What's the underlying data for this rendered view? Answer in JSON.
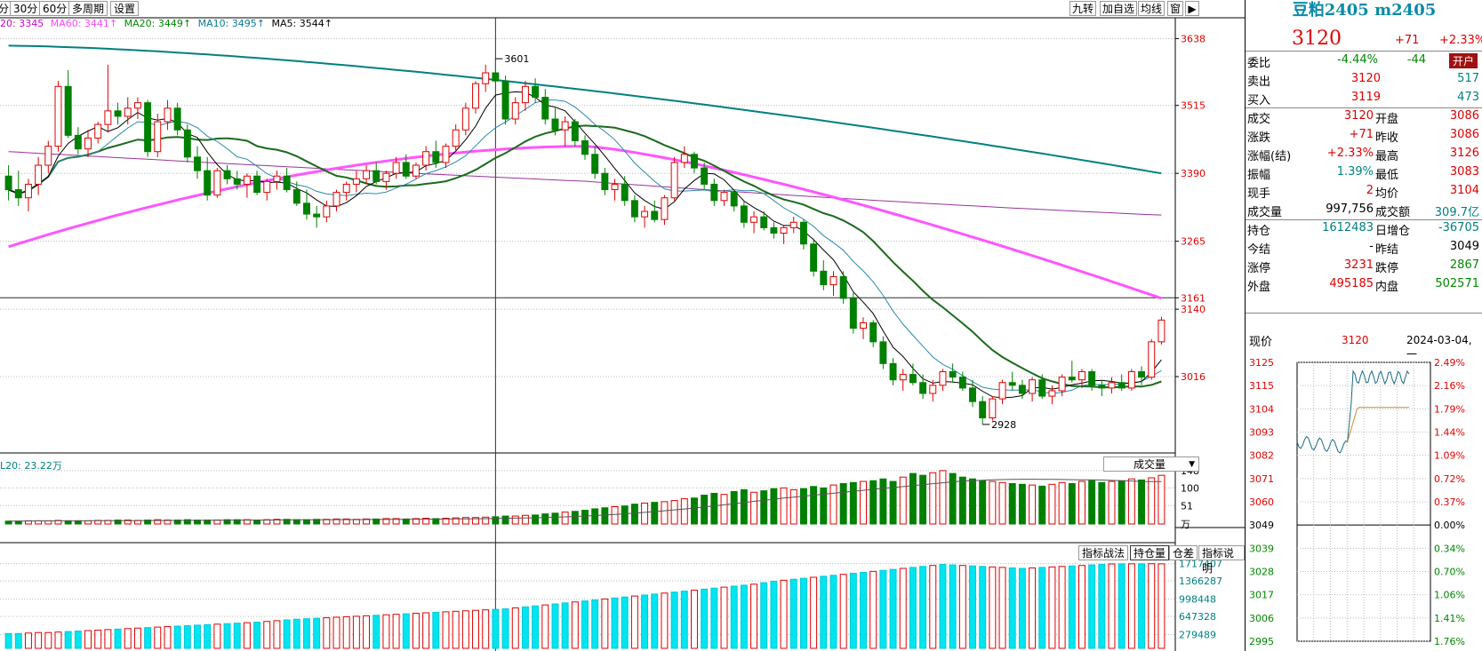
{
  "toolbar": {
    "tabs": [
      "分",
      "30分",
      "60分",
      "多周期",
      "设置"
    ],
    "right_tabs": [
      "九转",
      "加自选",
      "均线",
      "窗"
    ],
    "ma": [
      {
        "label": "20: 3345",
        "color": "#cc00cc"
      },
      {
        "label": "MA60: 3441↑",
        "color": "#ff44ff"
      },
      {
        "label": "MA20: 3449↑",
        "color": "#008800"
      },
      {
        "label": "MA10: 3495↑",
        "color": "#0a7a9a"
      },
      {
        "label": "MA5: 3544↑",
        "color": "#000000"
      }
    ]
  },
  "main_chart": {
    "y_ticks": [
      "3638",
      "3515",
      "3390",
      "3265",
      "3161",
      "3140",
      "3016"
    ],
    "high_label": "3601",
    "low_label": "2928"
  },
  "volume_panel": {
    "label": "L20: 23.22万",
    "selector": "成交量",
    "y_ticks": [
      "148",
      "100",
      "51"
    ],
    "unit": "万"
  },
  "oi_panel": {
    "tabs": [
      "指标战法",
      "持仓量",
      "仓差",
      "指标说明"
    ],
    "y_ticks": [
      "1717407",
      "1366287",
      "998448",
      "647328",
      "279489"
    ]
  },
  "quote": {
    "title": "豆粕2405 m2405",
    "price": "3120",
    "change": "+71",
    "change_pct": "+2.33%",
    "rows": [
      {
        "l": "委比",
        "v1": "-4.44%",
        "v1c": "green",
        "v2": "-44",
        "v2c": "green",
        "badge": "开户"
      },
      {
        "l": "卖出",
        "v1": "3120",
        "v1c": "red",
        "v2": "517",
        "v2c": "teal"
      },
      {
        "l": "买入",
        "v1": "3119",
        "v1c": "red",
        "v2": "473",
        "v2c": "teal"
      },
      {
        "l": "成交",
        "v1": "3120",
        "v1c": "red",
        "l2": "开盘",
        "v2": "3086",
        "v2c": "red"
      },
      {
        "l": "涨跌",
        "v1": "+71",
        "v1c": "red",
        "l2": "昨收",
        "v2": "3086",
        "v2c": "red"
      },
      {
        "l": "涨幅(结)",
        "v1": "+2.33%",
        "v1c": "red",
        "l2": "最高",
        "v2": "3126",
        "v2c": "red"
      },
      {
        "l": "振幅",
        "v1": "1.39%",
        "v1c": "teal",
        "l2": "最低",
        "v2": "3083",
        "v2c": "red"
      },
      {
        "l": "现手",
        "v1": "2",
        "v1c": "red",
        "l2": "均价",
        "v2": "3104",
        "v2c": "red"
      },
      {
        "l": "成交量",
        "v1": "997,756",
        "v1c": "black",
        "l2": "成交额",
        "v2": "309.7亿",
        "v2c": "teal"
      },
      {
        "l": "持仓",
        "v1": "1612483",
        "v1c": "teal",
        "l2": "日增仓",
        "v2": "-36705",
        "v2c": "teal"
      },
      {
        "l": "今结",
        "v1": "-",
        "v1c": "black",
        "l2": "昨结",
        "v2": "3049",
        "v2c": "black"
      },
      {
        "l": "涨停",
        "v1": "3231",
        "v1c": "red",
        "l2": "跌停",
        "v2": "2867",
        "v2c": "green"
      },
      {
        "l": "外盘",
        "v1": "495185",
        "v1c": "red",
        "l2": "内盘",
        "v2": "502571",
        "v2c": "green"
      }
    ],
    "mini_label": "现价",
    "mini_price": "3120",
    "mini_date": "2024-03-04,一",
    "mini_left_ticks": [
      "3125",
      "3115",
      "3104",
      "3093",
      "3082",
      "3071",
      "3060",
      "3049",
      "3039",
      "3028",
      "3017",
      "3006",
      "2995"
    ],
    "mini_right_ticks": [
      "2.49%",
      "2.16%",
      "1.79%",
      "1.44%",
      "1.09%",
      "0.72%",
      "0.37%",
      "0.00%",
      "0.34%",
      "0.70%",
      "1.06%",
      "1.41%",
      "1.76%"
    ]
  },
  "colors": {
    "up": "#e00000",
    "down": "#008000",
    "oi_up": "#00e5f0",
    "ma60": "#ff55ff",
    "ma20": "#1a6a1a",
    "ma_long": "#008080"
  },
  "chart_data": {
    "type": "candlestick",
    "instrument": "m2405",
    "y_range": [
      2900,
      3660
    ],
    "candles": [
      [
        3385,
        3405,
        3340,
        3360
      ],
      [
        3360,
        3395,
        3330,
        3345
      ],
      [
        3345,
        3380,
        3320,
        3370
      ],
      [
        3370,
        3420,
        3350,
        3405
      ],
      [
        3405,
        3450,
        3390,
        3440
      ],
      [
        3440,
        3560,
        3430,
        3550
      ],
      [
        3550,
        3580,
        3455,
        3460
      ],
      [
        3460,
        3475,
        3425,
        3435
      ],
      [
        3435,
        3470,
        3420,
        3455
      ],
      [
        3455,
        3485,
        3445,
        3480
      ],
      [
        3480,
        3590,
        3465,
        3505
      ],
      [
        3505,
        3520,
        3480,
        3495
      ],
      [
        3495,
        3530,
        3480,
        3510
      ],
      [
        3510,
        3530,
        3490,
        3520
      ],
      [
        3520,
        3525,
        3420,
        3430
      ],
      [
        3430,
        3500,
        3420,
        3485
      ],
      [
        3485,
        3525,
        3470,
        3510
      ],
      [
        3510,
        3520,
        3460,
        3470
      ],
      [
        3470,
        3480,
        3410,
        3420
      ],
      [
        3420,
        3440,
        3380,
        3395
      ],
      [
        3395,
        3420,
        3340,
        3350
      ],
      [
        3350,
        3400,
        3345,
        3395
      ],
      [
        3395,
        3405,
        3370,
        3380
      ],
      [
        3380,
        3395,
        3360,
        3370
      ],
      [
        3370,
        3390,
        3345,
        3385
      ],
      [
        3385,
        3395,
        3350,
        3355
      ],
      [
        3355,
        3380,
        3340,
        3375
      ],
      [
        3375,
        3395,
        3360,
        3385
      ],
      [
        3385,
        3400,
        3355,
        3360
      ],
      [
        3360,
        3375,
        3330,
        3335
      ],
      [
        3335,
        3360,
        3305,
        3315
      ],
      [
        3315,
        3330,
        3290,
        3310
      ],
      [
        3310,
        3340,
        3300,
        3330
      ],
      [
        3330,
        3360,
        3320,
        3355
      ],
      [
        3355,
        3375,
        3340,
        3370
      ],
      [
        3370,
        3395,
        3355,
        3380
      ],
      [
        3380,
        3405,
        3370,
        3395
      ],
      [
        3395,
        3410,
        3370,
        3375
      ],
      [
        3375,
        3395,
        3360,
        3390
      ],
      [
        3390,
        3420,
        3380,
        3410
      ],
      [
        3410,
        3425,
        3380,
        3385
      ],
      [
        3385,
        3410,
        3380,
        3405
      ],
      [
        3405,
        3440,
        3395,
        3430
      ],
      [
        3430,
        3450,
        3400,
        3410
      ],
      [
        3410,
        3445,
        3400,
        3440
      ],
      [
        3440,
        3480,
        3430,
        3470
      ],
      [
        3470,
        3520,
        3460,
        3510
      ],
      [
        3510,
        3560,
        3500,
        3555
      ],
      [
        3555,
        3590,
        3540,
        3575
      ],
      [
        3575,
        3601,
        3555,
        3560
      ],
      [
        3560,
        3570,
        3480,
        3490
      ],
      [
        3490,
        3530,
        3480,
        3520
      ],
      [
        3520,
        3560,
        3505,
        3550
      ],
      [
        3550,
        3565,
        3520,
        3530
      ],
      [
        3530,
        3545,
        3480,
        3490
      ],
      [
        3490,
        3510,
        3460,
        3470
      ],
      [
        3470,
        3495,
        3440,
        3485
      ],
      [
        3485,
        3490,
        3440,
        3450
      ],
      [
        3450,
        3460,
        3415,
        3425
      ],
      [
        3425,
        3440,
        3380,
        3390
      ],
      [
        3390,
        3400,
        3350,
        3360
      ],
      [
        3360,
        3380,
        3340,
        3370
      ],
      [
        3370,
        3385,
        3330,
        3340
      ],
      [
        3340,
        3350,
        3300,
        3310
      ],
      [
        3310,
        3330,
        3290,
        3320
      ],
      [
        3320,
        3340,
        3300,
        3305
      ],
      [
        3305,
        3350,
        3295,
        3345
      ],
      [
        3345,
        3420,
        3340,
        3410
      ],
      [
        3410,
        3440,
        3400,
        3425
      ],
      [
        3425,
        3430,
        3390,
        3400
      ],
      [
        3400,
        3410,
        3360,
        3370
      ],
      [
        3370,
        3380,
        3330,
        3340
      ],
      [
        3340,
        3360,
        3330,
        3355
      ],
      [
        3355,
        3360,
        3320,
        3330
      ],
      [
        3330,
        3340,
        3290,
        3300
      ],
      [
        3300,
        3320,
        3280,
        3310
      ],
      [
        3310,
        3320,
        3285,
        3290
      ],
      [
        3290,
        3300,
        3270,
        3280
      ],
      [
        3280,
        3295,
        3260,
        3290
      ],
      [
        3290,
        3310,
        3280,
        3300
      ],
      [
        3300,
        3305,
        3250,
        3260
      ],
      [
        3260,
        3270,
        3200,
        3210
      ],
      [
        3210,
        3230,
        3175,
        3185
      ],
      [
        3185,
        3210,
        3165,
        3200
      ],
      [
        3200,
        3210,
        3150,
        3160
      ],
      [
        3160,
        3170,
        3095,
        3105
      ],
      [
        3105,
        3125,
        3085,
        3115
      ],
      [
        3115,
        3120,
        3070,
        3080
      ],
      [
        3080,
        3090,
        3030,
        3040
      ],
      [
        3040,
        3050,
        3000,
        3010
      ],
      [
        3010,
        3030,
        2990,
        3020
      ],
      [
        3020,
        3040,
        3000,
        3005
      ],
      [
        3005,
        3020,
        2975,
        2985
      ],
      [
        2985,
        3010,
        2970,
        3000
      ],
      [
        3000,
        3030,
        2990,
        3025
      ],
      [
        3025,
        3040,
        3005,
        3015
      ],
      [
        3015,
        3025,
        2990,
        2995
      ],
      [
        2995,
        3010,
        2960,
        2970
      ],
      [
        2970,
        2980,
        2928,
        2940
      ],
      [
        2940,
        2980,
        2935,
        2975
      ],
      [
        2975,
        3010,
        2965,
        3005
      ],
      [
        3005,
        3025,
        2990,
        3000
      ],
      [
        3000,
        3010,
        2975,
        2985
      ],
      [
        2985,
        3015,
        2970,
        3010
      ],
      [
        3010,
        3020,
        2975,
        2980
      ],
      [
        2980,
        3000,
        2965,
        2990
      ],
      [
        2990,
        3020,
        2980,
        3015
      ],
      [
        3015,
        3045,
        3005,
        3010
      ],
      [
        3010,
        3030,
        2995,
        3025
      ],
      [
        3025,
        3030,
        2990,
        3000
      ],
      [
        3000,
        3010,
        2980,
        2995
      ],
      [
        2995,
        3015,
        2985,
        3005
      ],
      [
        3005,
        3020,
        2990,
        2995
      ],
      [
        2995,
        3030,
        2990,
        3025
      ],
      [
        3025,
        3035,
        3000,
        3015
      ],
      [
        3015,
        3085,
        3010,
        3080
      ],
      [
        3080,
        3126,
        3075,
        3120
      ]
    ],
    "ma_long": {
      "start": 3625,
      "end": 3390
    },
    "ma60": {
      "start": 3255,
      "end": 3160
    },
    "volume": [
      8,
      8,
      9,
      9,
      9,
      10,
      9,
      9,
      9,
      10,
      10,
      11,
      11,
      10,
      11,
      12,
      11,
      11,
      12,
      11,
      11,
      11,
      12,
      12,
      12,
      11,
      12,
      13,
      13,
      12,
      12,
      13,
      13,
      14,
      14,
      13,
      14,
      14,
      15,
      15,
      14,
      15,
      16,
      15,
      16,
      17,
      18,
      18,
      19,
      20,
      22,
      22,
      24,
      25,
      28,
      30,
      33,
      35,
      38,
      42,
      45,
      48,
      50,
      55,
      58,
      60,
      62,
      65,
      70,
      72,
      80,
      85,
      82,
      90,
      95,
      88,
      92,
      98,
      100,
      95,
      98,
      104,
      100,
      108,
      112,
      115,
      118,
      120,
      125,
      118,
      130,
      140,
      135,
      142,
      148,
      140,
      130,
      125,
      120,
      118,
      115,
      112,
      110,
      108,
      105,
      110,
      115,
      112,
      118,
      120,
      115,
      118,
      120,
      125,
      122,
      128,
      135
    ],
    "open_interest": [
      300,
      300,
      310,
      320,
      320,
      330,
      340,
      350,
      360,
      370,
      380,
      390,
      400,
      410,
      420,
      430,
      440,
      450,
      460,
      470,
      480,
      490,
      500,
      510,
      520,
      530,
      545,
      560,
      575,
      590,
      600,
      610,
      620,
      630,
      640,
      650,
      660,
      670,
      680,
      690,
      700,
      710,
      720,
      730,
      740,
      750,
      760,
      770,
      780,
      790,
      800,
      820,
      840,
      860,
      880,
      900,
      920,
      940,
      960,
      980,
      1000,
      1020,
      1040,
      1060,
      1080,
      1100,
      1120,
      1140,
      1160,
      1180,
      1200,
      1220,
      1240,
      1260,
      1280,
      1300,
      1330,
      1360,
      1380,
      1400,
      1420,
      1440,
      1460,
      1480,
      1500,
      1520,
      1540,
      1560,
      1580,
      1600,
      1620,
      1640,
      1660,
      1680,
      1700,
      1690,
      1680,
      1670,
      1660,
      1650,
      1640,
      1630,
      1620,
      1630,
      1640,
      1650,
      1660,
      1670,
      1680,
      1690,
      1700,
      1710,
      1712,
      1713,
      1714,
      1715,
      1712
    ]
  }
}
